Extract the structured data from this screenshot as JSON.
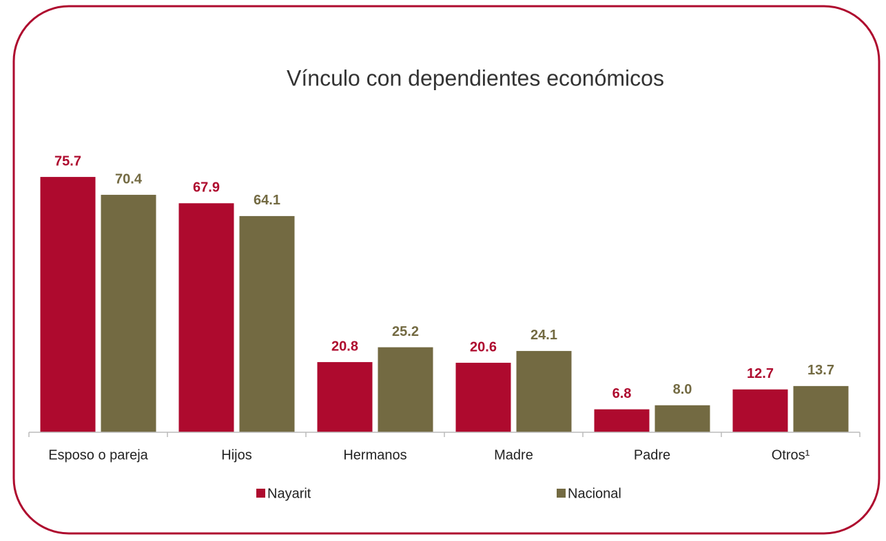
{
  "chart_data": {
    "type": "bar",
    "title": "Vínculo con dependientes económicos",
    "categories": [
      "Esposo o pareja",
      "Hijos",
      "Hermanos",
      "Madre",
      "Padre",
      "Otros¹"
    ],
    "series": [
      {
        "name": "Nayarit",
        "color": "#ae0a2e",
        "values": [
          75.7,
          67.9,
          20.8,
          20.6,
          6.8,
          12.7
        ],
        "value_labels": [
          "75.7",
          "67.9",
          "20.8",
          "20.6",
          "6.8",
          "12.7"
        ]
      },
      {
        "name": "Nacional",
        "color": "#736a42",
        "values": [
          70.4,
          64.1,
          25.2,
          24.1,
          8.0,
          13.7
        ],
        "value_labels": [
          "70.4",
          "64.1",
          "25.2",
          "24.1",
          "8.0",
          "13.7"
        ]
      }
    ],
    "ylim": [
      0,
      80
    ]
  }
}
